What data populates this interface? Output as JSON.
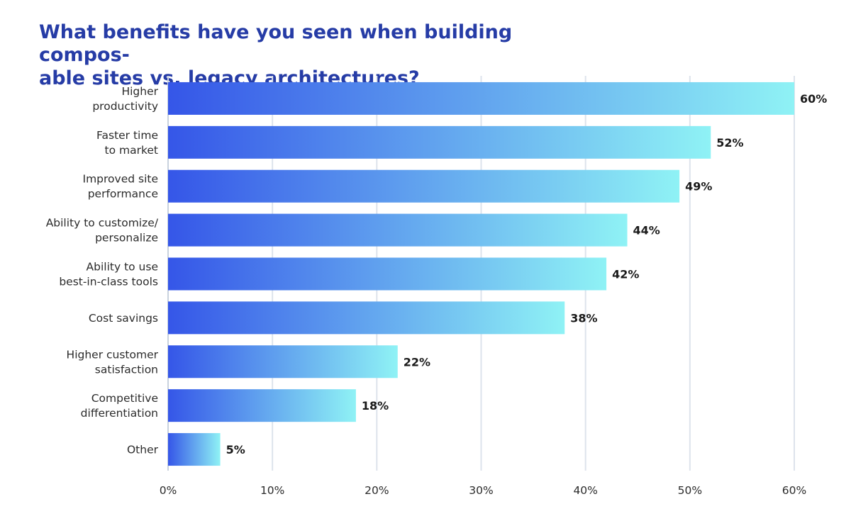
{
  "chart_data": {
    "type": "bar",
    "orientation": "horizontal",
    "title": "What benefits have you seen when building compos-\nable sites vs. legacy architectures?",
    "categories": [
      "Higher\nproductivity",
      "Faster time\nto market",
      "Improved site\nperformance",
      "Ability to customize/\npersonalize",
      "Ability to use\nbest-in-class tools",
      "Cost savings",
      "Higher customer\nsatisfaction",
      "Competitive\ndifferentiation",
      "Other"
    ],
    "values": [
      60,
      52,
      49,
      44,
      42,
      38,
      22,
      18,
      5
    ],
    "value_labels": [
      "60%",
      "52%",
      "49%",
      "44%",
      "42%",
      "38%",
      "22%",
      "18%",
      "5%"
    ],
    "xlim": [
      0,
      60
    ],
    "x_ticks": [
      0,
      10,
      20,
      30,
      40,
      50,
      60
    ],
    "x_tick_labels": [
      "0%",
      "10%",
      "20%",
      "30%",
      "40%",
      "50%",
      "60%"
    ],
    "grid": true,
    "bar_gradient": [
      "#3556e8",
      "#8ff2f5"
    ],
    "title_color": "#263ca6",
    "grid_color": "#dde3ec"
  }
}
